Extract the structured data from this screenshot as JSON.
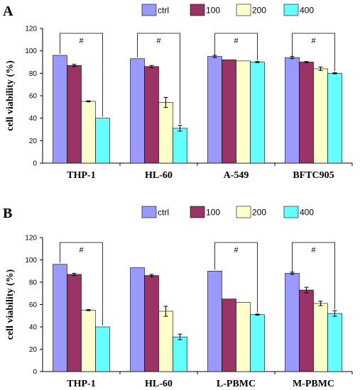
{
  "chart_data": [
    {
      "panel": "A",
      "type": "bar",
      "categories": [
        "THP-1",
        "HL-60",
        "A-549",
        "BFTC905"
      ],
      "ylabel": "cell viability (%)",
      "ylim": [
        0,
        120
      ],
      "yticks": [
        "0",
        "20",
        "40",
        "60",
        "80",
        "100",
        "120"
      ],
      "legend_position": "top",
      "series": [
        {
          "name": "ctrl",
          "color": "#9999FF",
          "values": [
            96,
            93,
            95,
            94
          ],
          "errors": [
            0,
            0,
            1,
            1
          ]
        },
        {
          "name": "100",
          "color": "#993366",
          "values": [
            87,
            86,
            92,
            90
          ],
          "errors": [
            1,
            1,
            0,
            0.5
          ]
        },
        {
          "name": "200",
          "color": "#FFFFCC",
          "values": [
            55,
            54,
            91,
            84
          ],
          "errors": [
            0.5,
            4.5,
            0,
            1.5
          ]
        },
        {
          "name": "400",
          "color": "#66FFFF",
          "values": [
            40,
            31,
            90,
            80
          ],
          "errors": [
            0,
            2.5,
            0.5,
            0.5
          ]
        }
      ],
      "significance": [
        {
          "category_index": 0,
          "mark": "#"
        },
        {
          "category_index": 1,
          "mark": "#"
        },
        {
          "category_index": 2,
          "mark": "#"
        },
        {
          "category_index": 3,
          "mark": "#"
        }
      ]
    },
    {
      "panel": "B",
      "type": "bar",
      "categories": [
        "THP-1",
        "HL-60",
        "L-PBMC",
        "M-PBMC"
      ],
      "ylabel": "cell viability (%)",
      "ylim": [
        0,
        120
      ],
      "yticks": [
        "0",
        "20",
        "40",
        "60",
        "80",
        "100",
        "120"
      ],
      "legend_position": "top",
      "series": [
        {
          "name": "ctrl",
          "color": "#9999FF",
          "values": [
            96,
            93,
            90,
            88
          ],
          "errors": [
            0,
            0,
            0,
            1
          ]
        },
        {
          "name": "100",
          "color": "#993366",
          "values": [
            87,
            86,
            65,
            73
          ],
          "errors": [
            1,
            1,
            0,
            2.5
          ]
        },
        {
          "name": "200",
          "color": "#FFFFCC",
          "values": [
            55,
            54,
            62,
            61
          ],
          "errors": [
            0.5,
            4.5,
            0,
            2
          ]
        },
        {
          "name": "400",
          "color": "#66FFFF",
          "values": [
            40,
            31,
            51,
            52
          ],
          "errors": [
            0,
            2.5,
            0.5,
            2.5
          ]
        }
      ],
      "significance": [
        {
          "category_index": 0,
          "mark": "#"
        },
        {
          "category_index": 2,
          "mark": "#"
        },
        {
          "category_index": 3,
          "mark": "#"
        }
      ]
    }
  ]
}
